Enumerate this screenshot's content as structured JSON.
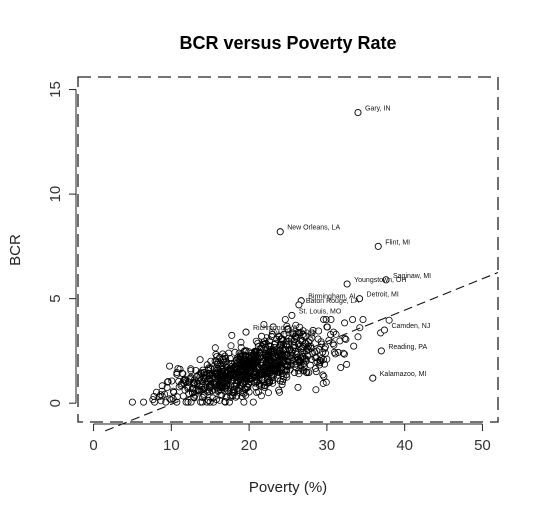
{
  "chart_data": {
    "type": "scatter",
    "title": "BCR versus Poverty Rate",
    "xlabel": "Poverty (%)",
    "ylabel": "BCR",
    "xlim": [
      -2,
      52
    ],
    "ylim": [
      -0.9,
      15.6
    ],
    "xticks": [
      0,
      10,
      20,
      30,
      40,
      50
    ],
    "yticks": [
      0,
      5,
      10,
      15
    ],
    "xtick_labels": [
      "0",
      "10",
      "20",
      "30",
      "40",
      "50"
    ],
    "ytick_labels": [
      "0",
      "5",
      "10",
      "15"
    ],
    "grid": false,
    "legend": "none",
    "fit_line": {
      "slope": 0.15,
      "intercept": -1.55,
      "style": "dashed"
    },
    "labeled_points": [
      {
        "x": 34.0,
        "y": 13.9,
        "label": "Gary, IN"
      },
      {
        "x": 24.0,
        "y": 8.2,
        "label": "New Orleans, LA"
      },
      {
        "x": 36.6,
        "y": 7.5,
        "label": "Flint, MI"
      },
      {
        "x": 37.6,
        "y": 5.9,
        "label": "Saginaw, MI"
      },
      {
        "x": 32.6,
        "y": 5.7,
        "label": "Youngstown, OH"
      },
      {
        "x": 34.2,
        "y": 5.0,
        "label": "Detroit, MI"
      },
      {
        "x": 26.7,
        "y": 4.9,
        "label": "Birmingham, AL"
      },
      {
        "x": 26.4,
        "y": 4.7,
        "label": "Baton Rouge, LA"
      },
      {
        "x": 25.5,
        "y": 4.2,
        "label": "St. Louis, MO"
      },
      {
        "x": 19.6,
        "y": 3.4,
        "label": "Richmond, VA"
      },
      {
        "x": 21.6,
        "y": 3.2,
        "label": "Columbus, OH"
      },
      {
        "x": 37.4,
        "y": 3.5,
        "label": "Camden, NJ"
      },
      {
        "x": 37.0,
        "y": 2.5,
        "label": "Reading, PA"
      },
      {
        "x": 35.9,
        "y": 1.2,
        "label": "Kalamazoo, MI"
      }
    ],
    "note": "Dense cloud of roughly 900 unlabeled cities spanning poverty 5–38% and BCR 0–4."
  }
}
